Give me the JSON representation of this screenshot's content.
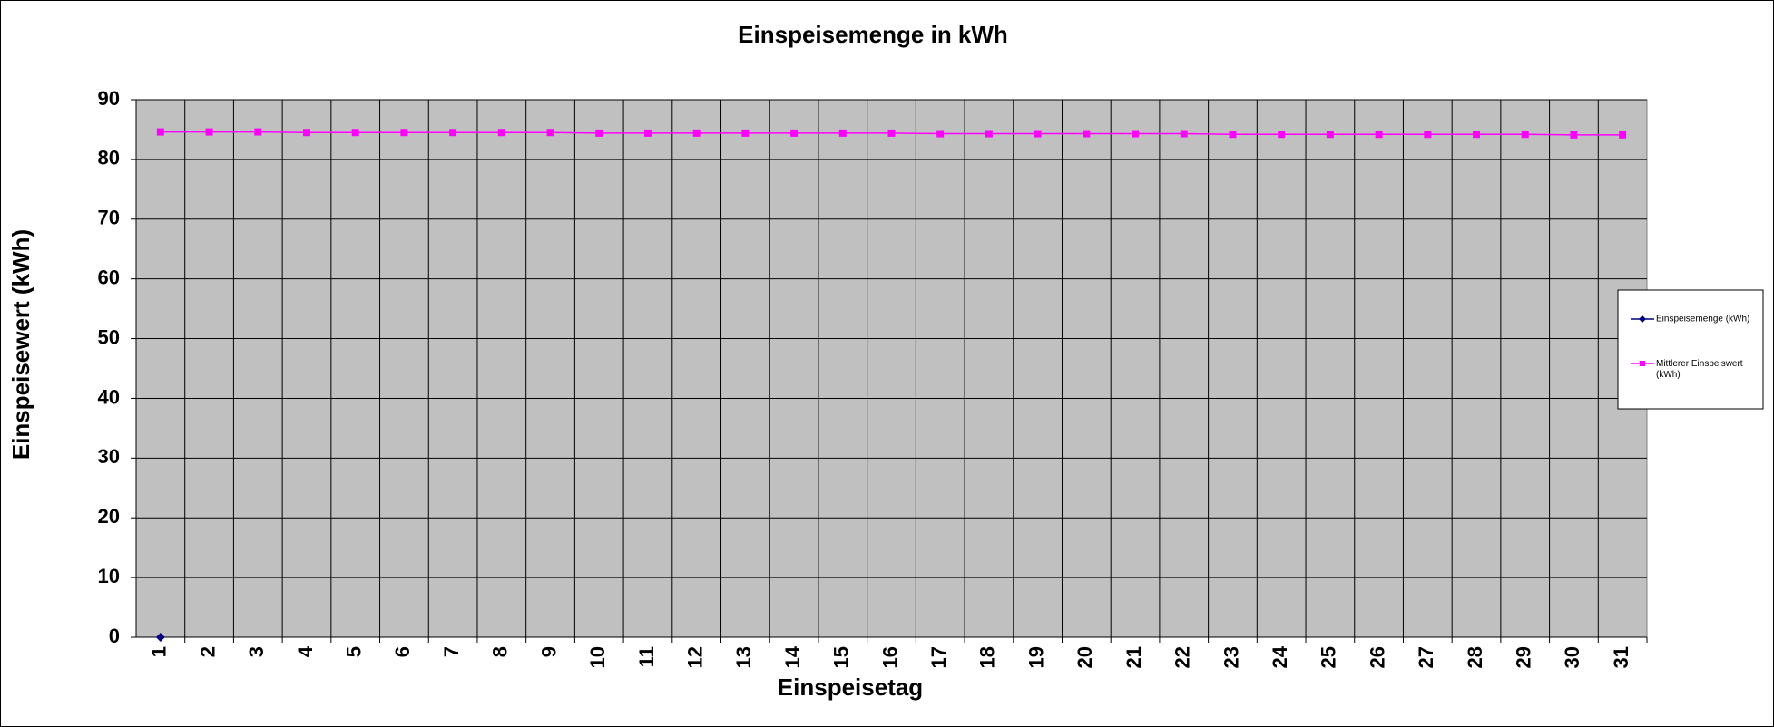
{
  "chart_data": {
    "type": "line",
    "title": "Einspeisemenge in kWh",
    "x_label": "Einspeisetag",
    "y_label": "Einspeisewert  (kWh)",
    "categories": [
      "1",
      "2",
      "3",
      "4",
      "5",
      "6",
      "7",
      "8",
      "9",
      "10",
      "11",
      "12",
      "13",
      "14",
      "15",
      "16",
      "17",
      "18",
      "19",
      "20",
      "21",
      "22",
      "23",
      "24",
      "25",
      "26",
      "27",
      "28",
      "29",
      "30",
      "31"
    ],
    "series": [
      {
        "name": "Einspeisemenge (kWh)",
        "color": "#000080",
        "marker": "diamond",
        "values": [
          0,
          null,
          null,
          null,
          null,
          null,
          null,
          null,
          null,
          null,
          null,
          null,
          null,
          null,
          null,
          null,
          null,
          null,
          null,
          null,
          null,
          null,
          null,
          null,
          null,
          null,
          null,
          null,
          null,
          null,
          null
        ]
      },
      {
        "name": "Mittlerer Einspeiswert (kWh)",
        "color": "#ff00ff",
        "marker": "square",
        "values": [
          84.6,
          84.6,
          84.6,
          84.5,
          84.5,
          84.5,
          84.5,
          84.5,
          84.5,
          84.4,
          84.4,
          84.4,
          84.4,
          84.4,
          84.4,
          84.4,
          84.3,
          84.3,
          84.3,
          84.3,
          84.3,
          84.3,
          84.2,
          84.2,
          84.2,
          84.2,
          84.2,
          84.2,
          84.2,
          84.1,
          84.1
        ]
      }
    ],
    "ylim": [
      0,
      90
    ],
    "yticks": [
      0,
      10,
      20,
      30,
      40,
      50,
      60,
      70,
      80,
      90
    ],
    "grid": true,
    "legend": "right",
    "plot_background": "#c0c0c0"
  }
}
